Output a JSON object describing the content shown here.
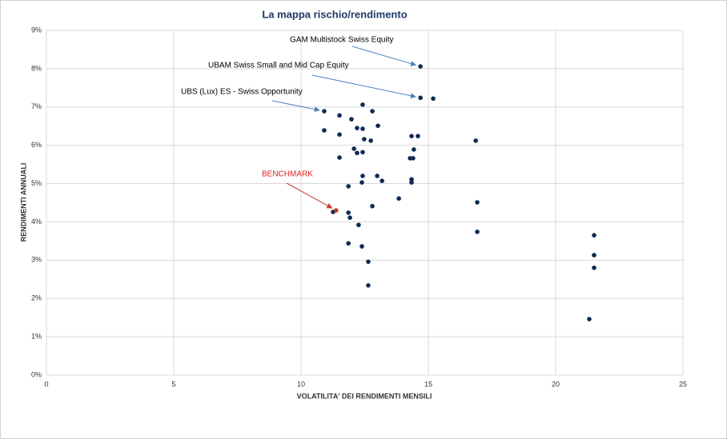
{
  "chart_data": {
    "type": "scatter",
    "title": "La mappa rischio/rendimento",
    "x_label": "VOLATILITA' DEI RENDIMENTI MENSILI",
    "y_label": "RENDIMENTI ANNUALI",
    "xlim": [
      0,
      25
    ],
    "xticks": [
      0,
      5,
      10,
      15,
      20,
      25
    ],
    "ylim": [
      0,
      9
    ],
    "yticks": [
      {
        "value": 0,
        "label": "0%"
      },
      {
        "value": 1,
        "label": "1%"
      },
      {
        "value": 2,
        "label": "2%"
      },
      {
        "value": 3,
        "label": "3%"
      },
      {
        "value": 4,
        "label": "4%"
      },
      {
        "value": 5,
        "label": "5%"
      },
      {
        "value": 6,
        "label": "6%"
      },
      {
        "value": 7,
        "label": "7%"
      },
      {
        "value": 8,
        "label": "8%"
      },
      {
        "value": 9,
        "label": "9%"
      }
    ],
    "grid": true,
    "series": [
      {
        "color": "#0e2a52",
        "x": [
          14.69,
          14.69,
          15.19,
          10.91,
          12.42,
          12.8,
          11.51,
          11.98,
          10.91,
          13.02,
          12.2,
          12.42,
          11.51,
          12.48,
          12.74,
          14.34,
          14.59,
          16.86,
          12.08,
          12.2,
          12.42,
          14.43,
          14.28,
          14.4,
          11.51,
          12.42,
          12.99,
          14.34,
          13.18,
          12.39,
          14.34,
          11.86,
          13.84,
          16.92,
          12.8,
          11.26,
          11.86,
          11.92,
          12.26,
          16.92,
          21.51,
          11.86,
          12.39,
          21.51,
          21.51,
          12.64,
          12.64,
          21.32
        ],
        "y": [
          8.06,
          7.24,
          7.22,
          6.89,
          7.06,
          6.89,
          6.78,
          6.68,
          6.39,
          6.51,
          6.45,
          6.43,
          6.28,
          6.16,
          6.12,
          6.24,
          6.24,
          6.12,
          5.91,
          5.8,
          5.82,
          5.89,
          5.66,
          5.66,
          5.68,
          5.2,
          5.2,
          5.11,
          5.07,
          5.03,
          5.03,
          4.93,
          4.61,
          4.51,
          4.41,
          4.26,
          4.24,
          4.11,
          3.92,
          3.74,
          3.65,
          3.44,
          3.36,
          3.13,
          2.8,
          2.96,
          2.34,
          1.46
        ]
      },
      {
        "color": "#c0392b",
        "x": [
          11.38
        ],
        "y": [
          4.3
        ]
      }
    ],
    "annotations": [
      {
        "text": "GAM Multistock Swiss Equity",
        "color": "#000000",
        "x": 14.69,
        "y": 8.06
      },
      {
        "text": "UBAM Swiss Small and Mid Cap Equity",
        "color": "#000000",
        "x": 14.69,
        "y": 7.24
      },
      {
        "text": "UBS (Lux) ES - Swiss Opportunity",
        "color": "#000000",
        "x": 10.91,
        "y": 6.89
      },
      {
        "text": "BENCHMARK",
        "color": "#e02020",
        "x": 11.38,
        "y": 4.3
      }
    ]
  }
}
